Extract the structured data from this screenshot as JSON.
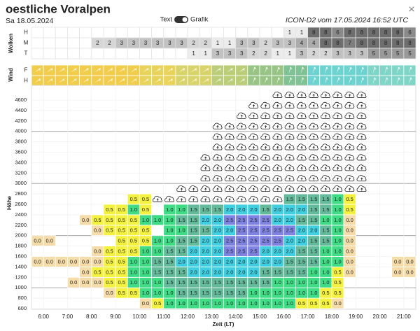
{
  "header": {
    "title": "oestliche Voralpen",
    "date": "Sa 18.05.2024",
    "toggle_left": "Text",
    "toggle_right": "Grafik",
    "model": "ICON-D2 vom 17.05.2024 16:52 UTC",
    "close": "×"
  },
  "times": [
    "6:00",
    "7:00",
    "8:00",
    "9:00",
    "10:00",
    "11:00",
    "12:00",
    "13:00",
    "14:00",
    "15:00",
    "16:00",
    "17:00",
    "18:00",
    "19:00",
    "20:00",
    "21:00"
  ],
  "clouds_table": {
    "label": "Wolken",
    "rows": [
      {
        "name": "H",
        "values": [
          null,
          null,
          null,
          null,
          null,
          null,
          null,
          null,
          null,
          null,
          null,
          null,
          null,
          null,
          null,
          null,
          null,
          null,
          null,
          null,
          null,
          1,
          1,
          8,
          8,
          6,
          8,
          8,
          8,
          8,
          8,
          6
        ]
      },
      {
        "name": "M",
        "values": [
          null,
          null,
          null,
          null,
          null,
          2,
          2,
          3,
          3,
          3,
          3,
          3,
          3,
          2,
          2,
          1,
          1,
          3,
          3,
          2,
          3,
          3,
          4,
          4,
          8,
          8,
          7,
          8,
          8,
          8,
          8,
          8
        ]
      },
      {
        "name": "T",
        "values": [
          null,
          null,
          null,
          null,
          null,
          null,
          null,
          null,
          null,
          null,
          null,
          null,
          null,
          1,
          1,
          3,
          3,
          3,
          2,
          2,
          1,
          1,
          3,
          2,
          2,
          3,
          3,
          3,
          5,
          5,
          5,
          5
        ]
      }
    ],
    "colors": {
      "1": "#ececec",
      "2": "#d6d6d6",
      "3": "#c2c2c2",
      "4": "#ababab",
      "5": "#999999",
      "6": "#8a8a8a",
      "7": "#7d7d7d",
      "8": "#6e6e6e"
    }
  },
  "wind": {
    "label": "Wind",
    "rows": [
      {
        "name": "F"
      },
      {
        "name": "H"
      }
    ],
    "colors": [
      "#f2cc4b",
      "#f2cc4b",
      "#f2cc4b",
      "#f2cc4b",
      "#f2cc4b",
      "#f2cc4b",
      "#f2cc4b",
      "#f2cc4b",
      "#f2cc4b",
      "#e9d35a",
      "#e9d35a",
      "#e9d35a",
      "#d9d46a",
      "#d9d46a",
      "#d9d46a",
      "#bccd78",
      "#bccd78",
      "#bccd78",
      "#98c585",
      "#98c585",
      "#98c585",
      "#7fc293",
      "#7fc293",
      "#6dd3d0",
      "#6dd3d0",
      "#6dd3d0",
      "#6dd3d0",
      "#6dd3d0",
      "#7fd6c8",
      "#7fd6c8",
      "#7fd6c8",
      "#7fd6c8"
    ]
  },
  "thermals": {
    "y_label": "Höhe",
    "x_label": "Zeit (LT)",
    "altitudes": [
      600,
      800,
      1000,
      1200,
      1400,
      1600,
      1800,
      2000,
      2200,
      2400,
      2600,
      2800,
      3000,
      3200,
      3400,
      3600,
      3800,
      4000,
      4200,
      4400,
      4600
    ],
    "colors": {
      "0.0": "#f6dca9",
      "0.5": "#f4f23f",
      "1.0": "#3fdc86",
      "1.5": "#63bb9c",
      "2.0": "#3fcfe0",
      "2.5": "#7f82e0"
    },
    "rows": [
      [
        null,
        null,
        null,
        null,
        null,
        null,
        null,
        null,
        null,
        "0.0",
        "0.5",
        "1.0",
        "1.0",
        "1.0",
        "1.0",
        "1.0",
        "1.0",
        "1.0",
        "1.0",
        "1.0",
        "1.0",
        "1.0",
        "0.5",
        "0.5",
        "0.5",
        "0.0",
        null,
        null,
        null,
        null,
        null,
        null
      ],
      [
        null,
        null,
        null,
        null,
        null,
        null,
        "0.0",
        "0.5",
        "0.5",
        "1.0",
        "1.0",
        "1.0",
        "1.5",
        "1.5",
        "1.5",
        "1.5",
        "1.5",
        "1.5",
        "1.0",
        "1.0",
        "1.0",
        "1.0",
        "1.0",
        "1.0",
        "0.5",
        "0.5",
        null,
        null,
        null,
        null,
        null,
        null
      ],
      [
        null,
        null,
        null,
        "0.0",
        "0.0",
        "0.0",
        "0.5",
        "0.5",
        "1.0",
        "1.0",
        "1.0",
        "1.5",
        "1.5",
        "1.5",
        "1.5",
        "1.5",
        "1.5",
        "1.5",
        "1.5",
        "1.5",
        "1.0",
        "1.0",
        "1.0",
        "1.0",
        "1.0",
        "0.5",
        null,
        null,
        null,
        null,
        null,
        null
      ],
      [
        null,
        null,
        null,
        null,
        "0.0",
        "0.5",
        "0.5",
        "0.5",
        "1.0",
        "1.0",
        "1.5",
        "1.5",
        "1.5",
        "2.0",
        "2.0",
        "2.0",
        "2.0",
        "2.0",
        "2.0",
        "1.5",
        "1.5",
        "1.5",
        "1.5",
        "1.0",
        "1.0",
        "0.5",
        "0.0",
        null,
        null,
        null,
        "0.0",
        "0.0"
      ],
      [
        "0.0",
        "0.0",
        "0.0",
        "0.0",
        "0.0",
        "0.0",
        "0.5",
        "0.5",
        "1.0",
        "1.0",
        "1.5",
        "1.5",
        "2.0",
        "2.0",
        "2.0",
        "2.0",
        "2.0",
        "2.0",
        "2.0",
        "2.0",
        "2.0",
        "1.5",
        "1.5",
        "1.5",
        "1.0",
        "1.0",
        "0.0",
        null,
        null,
        null,
        "0.0",
        "0.0"
      ],
      [
        null,
        null,
        null,
        null,
        null,
        "0.0",
        "0.5",
        "0.5",
        "0.5",
        "1.0",
        "1.0",
        "1.5",
        "1.5",
        "2.0",
        "2.0",
        "2.0",
        "2.5",
        "2.5",
        "2.5",
        "2.0",
        "2.0",
        "2.0",
        "1.5",
        "1.5",
        "1.0",
        "1.0",
        "0.0",
        null,
        null,
        null,
        null,
        null
      ],
      [
        "0.0",
        "0.0",
        null,
        null,
        null,
        null,
        null,
        "0.5",
        "0.5",
        "0.5",
        "1.0",
        "1.0",
        "1.5",
        "1.5",
        "2.0",
        "2.0",
        "2.5",
        "2.5",
        "2.5",
        "2.5",
        "2.5",
        "2.0",
        "2.0",
        "1.5",
        "1.5",
        "1.0",
        "0.0",
        null,
        null,
        null,
        null,
        null
      ],
      [
        null,
        null,
        null,
        null,
        null,
        "0.0",
        "0.5",
        "0.5",
        "0.5",
        "0.5",
        null,
        "1.0",
        "1.0",
        "1.5",
        "1.5",
        "2.0",
        "2.0",
        "2.5",
        "2.5",
        "2.5",
        "2.5",
        "2.5",
        "2.0",
        "2.0",
        "1.5",
        "1.0",
        "0.0",
        null,
        null,
        null,
        null,
        null
      ],
      [
        null,
        null,
        null,
        null,
        "0.0",
        "0.5",
        "0.5",
        "0.5",
        "0.5",
        "1.0",
        "1.0",
        "1.0",
        "1.5",
        "1.5",
        "2.0",
        "2.0",
        "2.5",
        "2.5",
        "2.5",
        "2.5",
        "2.0",
        "2.0",
        "1.5",
        "1.5",
        "1.0",
        "1.0",
        "0.0",
        null,
        null,
        null,
        null,
        null
      ],
      [
        null,
        null,
        null,
        null,
        null,
        null,
        "0.5",
        "0.5",
        "1.0",
        "0.5",
        null,
        "1.0",
        "1.0",
        "1.5",
        "1.5",
        "1.5",
        "2.0",
        "2.0",
        "2.0",
        "1.5",
        "2.0",
        "2.0",
        "2.0",
        "1.5",
        "1.5",
        "1.0",
        "0.5",
        null,
        null,
        null,
        null,
        null
      ],
      [
        null,
        null,
        null,
        null,
        null,
        null,
        null,
        null,
        "0.5",
        "0.5",
        null,
        null,
        null,
        null,
        null,
        null,
        null,
        null,
        null,
        null,
        null,
        "1.5",
        "1.5",
        "1.5",
        "1.5",
        "1.0",
        "0.5",
        null,
        null,
        null,
        null,
        null
      ],
      [
        null,
        null,
        null,
        null,
        null,
        null,
        null,
        null,
        null,
        null,
        null,
        null,
        null,
        null,
        null,
        null,
        null,
        null,
        null,
        null,
        null,
        null,
        null,
        null,
        null,
        null,
        null,
        null,
        null,
        null,
        null,
        null
      ],
      [
        null,
        null,
        null,
        null,
        null,
        null,
        null,
        null,
        null,
        null,
        null,
        null,
        null,
        null,
        null,
        null,
        null,
        null,
        null,
        null,
        null,
        null,
        null,
        null,
        null,
        null,
        null,
        null,
        null,
        null,
        null,
        null
      ],
      [
        null,
        null,
        null,
        null,
        null,
        null,
        null,
        null,
        null,
        null,
        null,
        null,
        null,
        null,
        null,
        null,
        null,
        null,
        null,
        null,
        null,
        null,
        null,
        null,
        null,
        null,
        null,
        null,
        null,
        null,
        null,
        null
      ],
      [
        null,
        null,
        null,
        null,
        null,
        null,
        null,
        null,
        null,
        null,
        null,
        null,
        null,
        null,
        null,
        null,
        null,
        null,
        null,
        null,
        null,
        null,
        null,
        null,
        null,
        null,
        null,
        null,
        null,
        null,
        null,
        null
      ],
      [
        null,
        null,
        null,
        null,
        null,
        null,
        null,
        null,
        null,
        null,
        null,
        null,
        null,
        null,
        null,
        null,
        null,
        null,
        null,
        null,
        null,
        null,
        null,
        null,
        null,
        null,
        null,
        null,
        null,
        null,
        null,
        null
      ],
      [
        null,
        null,
        null,
        null,
        null,
        null,
        null,
        null,
        null,
        null,
        null,
        null,
        null,
        null,
        null,
        null,
        null,
        null,
        null,
        null,
        null,
        null,
        null,
        null,
        null,
        null,
        null,
        null,
        null,
        null,
        null,
        null
      ],
      [
        null,
        null,
        null,
        null,
        null,
        null,
        null,
        null,
        null,
        null,
        null,
        null,
        null,
        null,
        null,
        null,
        null,
        null,
        null,
        null,
        null,
        null,
        null,
        null,
        null,
        null,
        null,
        null,
        null,
        null,
        null,
        null
      ],
      [
        null,
        null,
        null,
        null,
        null,
        null,
        null,
        null,
        null,
        null,
        null,
        null,
        null,
        null,
        null,
        null,
        null,
        null,
        null,
        null,
        null,
        null,
        null,
        null,
        null,
        null,
        null,
        null,
        null,
        null,
        null,
        null
      ],
      [
        null,
        null,
        null,
        null,
        null,
        null,
        null,
        null,
        null,
        null,
        null,
        null,
        null,
        null,
        null,
        null,
        null,
        null,
        null,
        null,
        null,
        null,
        null,
        null,
        null,
        null,
        null,
        null,
        null,
        null,
        null,
        null
      ],
      [
        null,
        null,
        null,
        null,
        null,
        null,
        null,
        null,
        null,
        null,
        null,
        null,
        null,
        null,
        null,
        null,
        null,
        null,
        null,
        null,
        null,
        null,
        null,
        null,
        null,
        null,
        null,
        null,
        null,
        null,
        null,
        null
      ]
    ],
    "clouds": [
      null,
      null,
      null,
      null,
      null,
      null,
      null,
      null,
      null,
      null,
      [
        2600,
        2600
      ],
      [
        2600,
        2600
      ],
      [
        2600,
        2800
      ],
      [
        2600,
        2800
      ],
      [
        2600,
        3400
      ],
      [
        2600,
        4000
      ],
      [
        2600,
        4000
      ],
      [
        2600,
        4200
      ],
      [
        2600,
        4400
      ],
      [
        2600,
        4400
      ],
      [
        2600,
        4600
      ],
      [
        2800,
        4600
      ],
      [
        2800,
        4600
      ],
      [
        2800,
        4600
      ],
      [
        2800,
        4600
      ],
      [
        2800,
        4600
      ],
      [
        2800,
        4600
      ],
      [
        2800,
        4600
      ],
      null,
      null,
      null,
      null
    ]
  }
}
